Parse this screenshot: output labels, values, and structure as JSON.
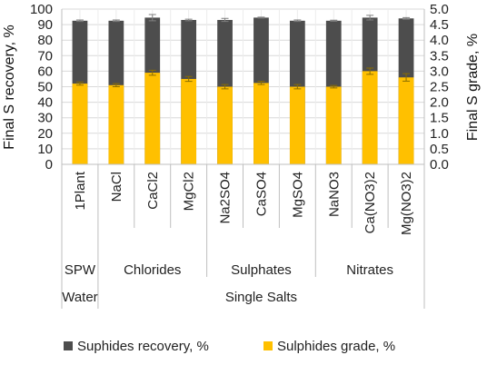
{
  "chart_data": {
    "type": "bar",
    "categories": [
      "1Plant",
      "NaCl",
      "CaCl2",
      "MgCl2",
      "Na2SO4",
      "CaSO4",
      "MgSO4",
      "NaNO3",
      "Ca(NO3)2",
      "Mg(NO3)2"
    ],
    "groups_level1": [
      {
        "label": "SPW",
        "span": [
          0,
          0
        ]
      },
      {
        "label": "Chlorides",
        "span": [
          1,
          3
        ]
      },
      {
        "label": "Sulphates",
        "span": [
          4,
          6
        ]
      },
      {
        "label": "Nitrates",
        "span": [
          7,
          9
        ]
      }
    ],
    "groups_level2": [
      {
        "label": "Water",
        "span": [
          0,
          0
        ]
      },
      {
        "label": "Single Salts",
        "span": [
          1,
          9
        ]
      }
    ],
    "series": [
      {
        "name": "Suphides recovery, %",
        "axis": "left",
        "color": "#4d4d4d",
        "values": [
          92.5,
          92.5,
          94.5,
          93.0,
          93.0,
          94.5,
          92.5,
          92.5,
          94.5,
          94.0
        ],
        "errors": [
          0.5,
          0.5,
          2.0,
          0.5,
          1.0,
          0.3,
          0.5,
          0.3,
          1.5,
          0.5
        ]
      },
      {
        "name": "Sulphides grade, %",
        "axis": "right",
        "color": "#ffc000",
        "values": [
          2.6,
          2.55,
          2.95,
          2.75,
          2.5,
          2.62,
          2.5,
          2.5,
          3.0,
          2.8
        ],
        "errors": [
          0.05,
          0.05,
          0.08,
          0.08,
          0.07,
          0.05,
          0.07,
          0.04,
          0.1,
          0.12
        ]
      }
    ],
    "ylabel_left": "Final S recovery, %",
    "ylabel_right": "Final S grade, %",
    "ylim_left": [
      0,
      100
    ],
    "ylim_right": [
      0,
      5.0
    ],
    "yticks_left": [
      "0",
      "10",
      "20",
      "30",
      "40",
      "50",
      "60",
      "70",
      "80",
      "90",
      "100"
    ],
    "yticks_right": [
      "0.0",
      "0.5",
      "1.0",
      "1.5",
      "2.0",
      "2.5",
      "3.0",
      "3.5",
      "4.0",
      "4.5",
      "5.0"
    ],
    "grid": true,
    "legend_position": "bottom"
  }
}
